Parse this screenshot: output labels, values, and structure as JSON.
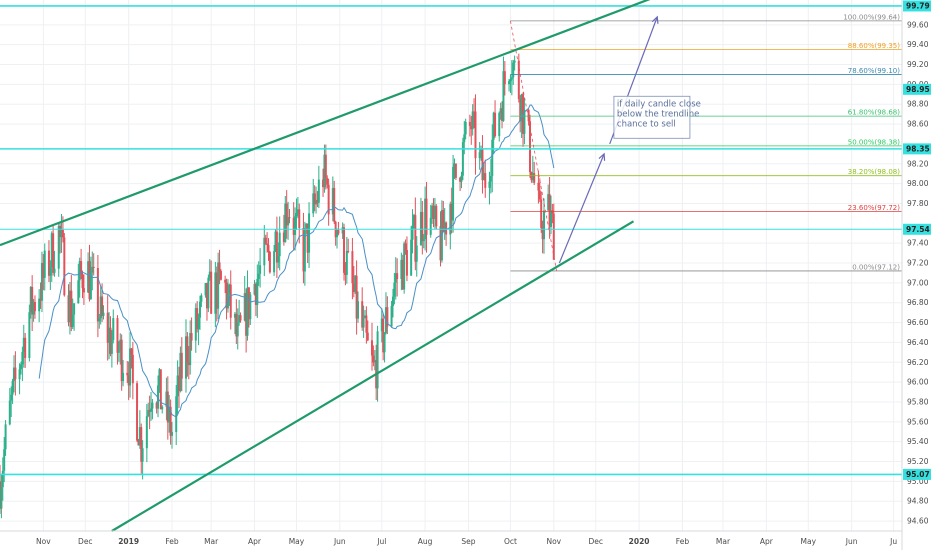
{
  "chart_data": {
    "type": "candlestick",
    "y_axis": {
      "range": [
        94.5,
        99.85
      ],
      "ticks": [
        {
          "value": 99.6,
          "label": "99.60"
        },
        {
          "value": 99.4,
          "label": "99.40"
        },
        {
          "value": 99.2,
          "label": "99.20"
        },
        {
          "value": 99.0,
          "label": "99.00"
        },
        {
          "value": 98.8,
          "label": "98.80"
        },
        {
          "value": 98.6,
          "label": "98.60"
        },
        {
          "value": 98.2,
          "label": "98.20"
        },
        {
          "value": 98.0,
          "label": "98.00"
        },
        {
          "value": 97.8,
          "label": "97.80"
        },
        {
          "value": 97.4,
          "label": "97.40"
        },
        {
          "value": 97.2,
          "label": "97.20"
        },
        {
          "value": 97.0,
          "label": "97.00"
        },
        {
          "value": 96.8,
          "label": "96.80"
        },
        {
          "value": 96.6,
          "label": "96.60"
        },
        {
          "value": 96.4,
          "label": "96.40"
        },
        {
          "value": 96.2,
          "label": "96.20"
        },
        {
          "value": 96.0,
          "label": "96.00"
        },
        {
          "value": 95.8,
          "label": "95.80"
        },
        {
          "value": 95.6,
          "label": "95.60"
        },
        {
          "value": 95.4,
          "label": "95.40"
        },
        {
          "value": 95.2,
          "label": "95.20"
        },
        {
          "value": 95.0,
          "label": "95.00"
        },
        {
          "value": 94.8,
          "label": "94.80"
        },
        {
          "value": 94.6,
          "label": "94.60"
        }
      ]
    },
    "x_axis": {
      "range": [
        "2018-10-01",
        "2020-07-07"
      ],
      "ticks": [
        {
          "date": "2018-11-01",
          "label": "Nov"
        },
        {
          "date": "2018-12-01",
          "label": "Dec"
        },
        {
          "date": "2019-01-01",
          "label": "2019"
        },
        {
          "date": "2019-02-01",
          "label": "Feb"
        },
        {
          "date": "2019-03-01",
          "label": "Mar"
        },
        {
          "date": "2019-04-01",
          "label": "Apr"
        },
        {
          "date": "2019-05-01",
          "label": "May"
        },
        {
          "date": "2019-06-01",
          "label": "Jun"
        },
        {
          "date": "2019-07-01",
          "label": "Jul"
        },
        {
          "date": "2019-08-01",
          "label": "Aug"
        },
        {
          "date": "2019-09-01",
          "label": "Sep"
        },
        {
          "date": "2019-10-01",
          "label": "Oct"
        },
        {
          "date": "2019-11-01",
          "label": "Nov"
        },
        {
          "date": "2019-12-01",
          "label": "Dec"
        },
        {
          "date": "2020-01-01",
          "label": "2020"
        },
        {
          "date": "2020-02-01",
          "label": "Feb"
        },
        {
          "date": "2020-03-01",
          "label": "Mar"
        },
        {
          "date": "2020-04-01",
          "label": "Apr"
        },
        {
          "date": "2020-05-01",
          "label": "May"
        },
        {
          "date": "2020-06-01",
          "label": "Jun"
        },
        {
          "date": "2020-07-01",
          "label": "Ju"
        }
      ]
    },
    "price_tags": [
      {
        "value": 99.79,
        "label": "99.79",
        "color": "#35e0e0"
      },
      {
        "value": 98.95,
        "label": "98.95",
        "color": "#35e0e0"
      },
      {
        "value": 98.35,
        "label": "98.35",
        "color": "#35e0e0"
      },
      {
        "value": 97.54,
        "label": "97.54",
        "color": "#35e0e0"
      },
      {
        "value": 95.07,
        "label": "95.07",
        "color": "#35e0e0"
      }
    ],
    "horizontal_lines": [
      {
        "value": 99.79,
        "color": "#35e0e0",
        "width": 1.6
      },
      {
        "value": 98.35,
        "color": "#35e0e0",
        "width": 1.6
      },
      {
        "value": 97.54,
        "color": "#35e0e0",
        "width": 1.0
      },
      {
        "value": 95.07,
        "color": "#35e0e0",
        "width": 1.6
      }
    ],
    "fib_retracement": {
      "start_date": "2019-10-01",
      "end_date": "2019-11-03",
      "levels": [
        {
          "ratio": "100.00%",
          "value": 99.64,
          "label": "100.00%(99.64)",
          "color": "#8a8a8a"
        },
        {
          "ratio": "88.60%",
          "value": 99.35,
          "label": "88.60%(99.35)",
          "color": "#f0a020"
        },
        {
          "ratio": "78.60%",
          "value": 99.1,
          "label": "78.60%(99.10)",
          "color": "#3a8ab0"
        },
        {
          "ratio": "61.80%",
          "value": 98.68,
          "label": "61.80%(98.68)",
          "color": "#3cc070"
        },
        {
          "ratio": "50.00%",
          "value": 98.38,
          "label": "50.00%(98.38)",
          "color": "#2ec860"
        },
        {
          "ratio": "38.20%",
          "value": 98.08,
          "label": "38.20%(98.08)",
          "color": "#90c020"
        },
        {
          "ratio": "23.60%",
          "value": 97.72,
          "label": "23.60%(97.72)",
          "color": "#e04040"
        },
        {
          "ratio": "0.00%",
          "value": 97.12,
          "label": "0.00%(97.12)",
          "color": "#8a8a8a"
        }
      ]
    },
    "channel_lines": [
      {
        "from": {
          "date": "2018-10-01",
          "value": 97.38
        },
        "to": {
          "date": "2020-01-20",
          "value": 99.92
        },
        "color": "#1f9a6a"
      },
      {
        "from": {
          "date": "2018-12-20",
          "value": 94.5
        },
        "to": {
          "date": "2019-12-28",
          "value": 97.62
        },
        "color": "#1f9a6a"
      }
    ],
    "projection_arrows": [
      {
        "from": {
          "date": "2019-11-05",
          "value": 97.2
        },
        "to": {
          "date": "2019-12-07",
          "value": 98.3
        },
        "color": "#6a6ab8"
      },
      {
        "from": {
          "date": "2019-12-11",
          "value": 98.4
        },
        "to": {
          "date": "2020-01-14",
          "value": 99.68
        },
        "color": "#6a6ab8"
      }
    ],
    "annotation": {
      "lines": [
        "if daily candle close",
        "below the trendline",
        "chance to sell"
      ],
      "anchor_date": "2019-12-14",
      "anchor_value": 98.88
    },
    "colors": {
      "up": "#2bb08a",
      "down": "#e2515a",
      "ma": "#4a90c8",
      "grid": "#eef0f3"
    },
    "anchors": [
      [
        "2018-10-01",
        95.0
      ],
      [
        "2018-10-08",
        95.7
      ],
      [
        "2018-10-22",
        96.7
      ],
      [
        "2018-10-31",
        97.0
      ],
      [
        "2018-11-12",
        97.5
      ],
      [
        "2018-11-21",
        96.7
      ],
      [
        "2018-12-01",
        97.2
      ],
      [
        "2018-12-13",
        96.6
      ],
      [
        "2018-12-25",
        96.3
      ],
      [
        "2019-01-01",
        96.2
      ],
      [
        "2019-01-10",
        95.4
      ],
      [
        "2019-01-18",
        96.0
      ],
      [
        "2019-01-25",
        95.8
      ],
      [
        "2019-02-01",
        95.5
      ],
      [
        "2019-02-10",
        96.3
      ],
      [
        "2019-02-20",
        96.6
      ],
      [
        "2019-03-01",
        96.9
      ],
      [
        "2019-03-10",
        97.0
      ],
      [
        "2019-03-20",
        96.4
      ],
      [
        "2019-04-01",
        97.0
      ],
      [
        "2019-04-15",
        97.4
      ],
      [
        "2019-04-25",
        97.8
      ],
      [
        "2019-05-06",
        97.3
      ],
      [
        "2019-05-20",
        98.1
      ],
      [
        "2019-06-01",
        97.5
      ],
      [
        "2019-06-12",
        96.8
      ],
      [
        "2019-06-25",
        96.1
      ],
      [
        "2019-07-01",
        96.4
      ],
      [
        "2019-07-10",
        97.0
      ],
      [
        "2019-07-20",
        97.3
      ],
      [
        "2019-08-01",
        97.7
      ],
      [
        "2019-08-12",
        97.4
      ],
      [
        "2019-08-25",
        98.2
      ],
      [
        "2019-09-03",
        98.6
      ],
      [
        "2019-09-12",
        98.0
      ],
      [
        "2019-09-25",
        98.9
      ],
      [
        "2019-10-01",
        99.3
      ],
      [
        "2019-10-08",
        98.9
      ],
      [
        "2019-10-15",
        98.3
      ],
      [
        "2019-10-22",
        97.6
      ],
      [
        "2019-10-28",
        97.7
      ],
      [
        "2019-11-03",
        97.4
      ]
    ]
  }
}
